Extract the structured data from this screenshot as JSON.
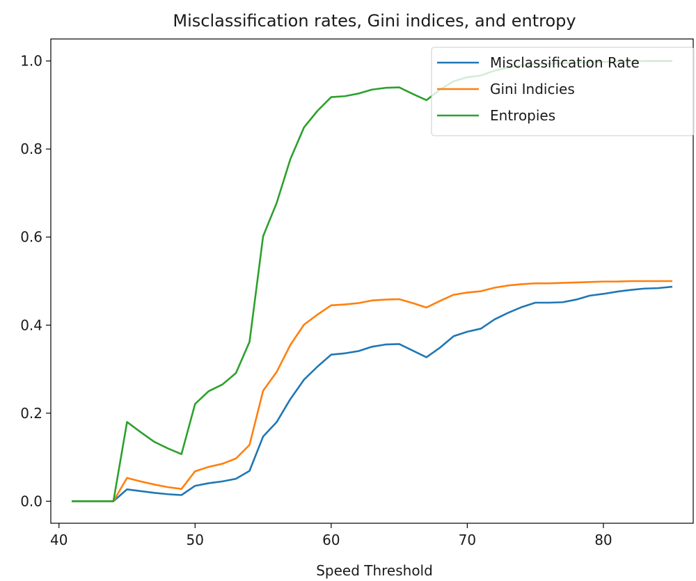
{
  "chart_data": {
    "type": "line",
    "title": "Misclassification rates, Gini indices, and entropy",
    "xlabel": "Speed Threshold",
    "ylabel": "",
    "xlim": [
      39.4,
      86.6
    ],
    "ylim": [
      -0.05,
      1.05
    ],
    "xticks": [
      40,
      50,
      60,
      70,
      80
    ],
    "yticks": [
      0.0,
      0.2,
      0.4,
      0.6,
      0.8,
      1.0
    ],
    "ytick_labels": [
      "0.0",
      "0.2",
      "0.4",
      "0.6",
      "0.8",
      "1.0"
    ],
    "grid": false,
    "legend": "top-right",
    "x": [
      41,
      42,
      43,
      44,
      45,
      46,
      47,
      48,
      49,
      50,
      51,
      52,
      53,
      54,
      55,
      56,
      57,
      58,
      59,
      60,
      61,
      62,
      63,
      64,
      65,
      66,
      67,
      68,
      69,
      70,
      71,
      72,
      73,
      74,
      75,
      76,
      77,
      78,
      79,
      80,
      81,
      82,
      83,
      84,
      85
    ],
    "series": [
      {
        "name": "Misclassification Rate",
        "color": "#1f77b4",
        "values": [
          0.0,
          0.0,
          0.0,
          0.0,
          0.027,
          0.023,
          0.019,
          0.016,
          0.014,
          0.035,
          0.041,
          0.045,
          0.051,
          0.069,
          0.147,
          0.18,
          0.232,
          0.276,
          0.306,
          0.333,
          0.336,
          0.341,
          0.351,
          0.356,
          0.357,
          0.342,
          0.327,
          0.349,
          0.375,
          0.385,
          0.392,
          0.413,
          0.428,
          0.441,
          0.451,
          0.451,
          0.452,
          0.458,
          0.467,
          0.471,
          0.476,
          0.48,
          0.483,
          0.484,
          0.487
        ]
      },
      {
        "name": "Gini Indicies",
        "color": "#ff7f0e",
        "values": [
          0.0,
          0.0,
          0.0,
          0.0,
          0.053,
          0.045,
          0.038,
          0.032,
          0.028,
          0.068,
          0.078,
          0.085,
          0.097,
          0.128,
          0.251,
          0.294,
          0.355,
          0.401,
          0.424,
          0.445,
          0.447,
          0.45,
          0.456,
          0.458,
          0.459,
          0.45,
          0.44,
          0.455,
          0.469,
          0.474,
          0.477,
          0.485,
          0.49,
          0.493,
          0.495,
          0.495,
          0.496,
          0.497,
          0.498,
          0.499,
          0.499,
          0.5,
          0.5,
          0.5,
          0.5
        ]
      },
      {
        "name": "Entropies",
        "color": "#2ca02c",
        "values": [
          0.0,
          0.0,
          0.0,
          0.0,
          0.18,
          0.157,
          0.135,
          0.12,
          0.107,
          0.221,
          0.25,
          0.265,
          0.291,
          0.362,
          0.602,
          0.678,
          0.777,
          0.849,
          0.887,
          0.918,
          0.92,
          0.926,
          0.935,
          0.939,
          0.94,
          0.925,
          0.911,
          0.935,
          0.954,
          0.963,
          0.967,
          0.978,
          0.985,
          0.99,
          0.993,
          0.994,
          0.995,
          0.996,
          0.997,
          0.998,
          0.999,
          0.999,
          1.0,
          1.0,
          1.0
        ]
      }
    ]
  }
}
